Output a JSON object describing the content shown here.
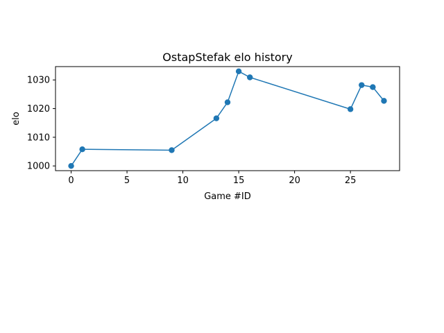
{
  "chart_data": {
    "type": "line",
    "title": "OstapStefak elo history",
    "xlabel": "Game #ID",
    "ylabel": "elo",
    "xlim": [
      -1.4,
      29.4
    ],
    "ylim": [
      998.35,
      1034.65
    ],
    "xticks": [
      0,
      5,
      10,
      15,
      20,
      25
    ],
    "yticks": [
      1000,
      1010,
      1020,
      1030
    ],
    "grid": false,
    "markers": true,
    "series": [
      {
        "color": "#1f77b4",
        "x": [
          0,
          1,
          9,
          13,
          14,
          15,
          16,
          25,
          26,
          27,
          28
        ],
        "y": [
          1000.0,
          1005.8,
          1005.5,
          1016.6,
          1022.2,
          1033.0,
          1030.9,
          1019.8,
          1028.2,
          1027.5,
          1022.7
        ]
      }
    ]
  }
}
